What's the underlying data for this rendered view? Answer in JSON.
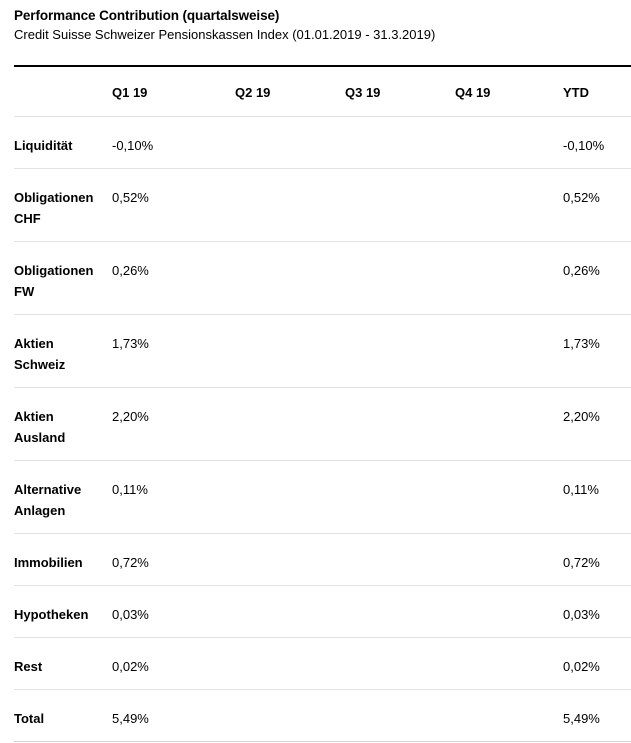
{
  "header": {
    "title": "Performance Contribution (quartalsweise)",
    "subtitle": "Credit Suisse Schweizer Pensionskassen Index (01.01.2019 - 31.3.2019)"
  },
  "table": {
    "columns": [
      "",
      "Q1 19",
      "Q2 19",
      "Q3 19",
      "Q4 19",
      "YTD"
    ],
    "rows": [
      {
        "label_lines": [
          "Liquidität",
          ""
        ],
        "q1": "-0,10%",
        "q2": "",
        "q3": "",
        "q4": "",
        "ytd": "-0,10%"
      },
      {
        "label_lines": [
          "Obligationen",
          "CHF"
        ],
        "q1": "0,52%",
        "q2": "",
        "q3": "",
        "q4": "",
        "ytd": "0,52%"
      },
      {
        "label_lines": [
          "Obligationen",
          "FW"
        ],
        "q1": "0,26%",
        "q2": "",
        "q3": "",
        "q4": "",
        "ytd": "0,26%"
      },
      {
        "label_lines": [
          "Aktien",
          "Schweiz"
        ],
        "q1": "1,73%",
        "q2": "",
        "q3": "",
        "q4": "",
        "ytd": "1,73%"
      },
      {
        "label_lines": [
          "Aktien",
          "Ausland"
        ],
        "q1": "2,20%",
        "q2": "",
        "q3": "",
        "q4": "",
        "ytd": "2,20%"
      },
      {
        "label_lines": [
          "Alternative",
          "Anlagen"
        ],
        "q1": "0,11%",
        "q2": "",
        "q3": "",
        "q4": "",
        "ytd": "0,11%"
      },
      {
        "label_lines": [
          "Immobilien",
          ""
        ],
        "q1": "0,72%",
        "q2": "",
        "q3": "",
        "q4": "",
        "ytd": "0,72%"
      },
      {
        "label_lines": [
          "Hypotheken",
          ""
        ],
        "q1": "0,03%",
        "q2": "",
        "q3": "",
        "q4": "",
        "ytd": "0,03%"
      },
      {
        "label_lines": [
          "Rest",
          ""
        ],
        "q1": "0,02%",
        "q2": "",
        "q3": "",
        "q4": "",
        "ytd": "0,02%"
      },
      {
        "label_lines": [
          "Total",
          ""
        ],
        "q1": "5,49%",
        "q2": "",
        "q3": "",
        "q4": "",
        "ytd": "5,49%"
      }
    ]
  },
  "colors": {
    "text": "#000000",
    "rule_dark": "#000000",
    "rule_light": "#e3e3e3",
    "rule_bottom": "#d5d5d5",
    "background": "#ffffff"
  }
}
